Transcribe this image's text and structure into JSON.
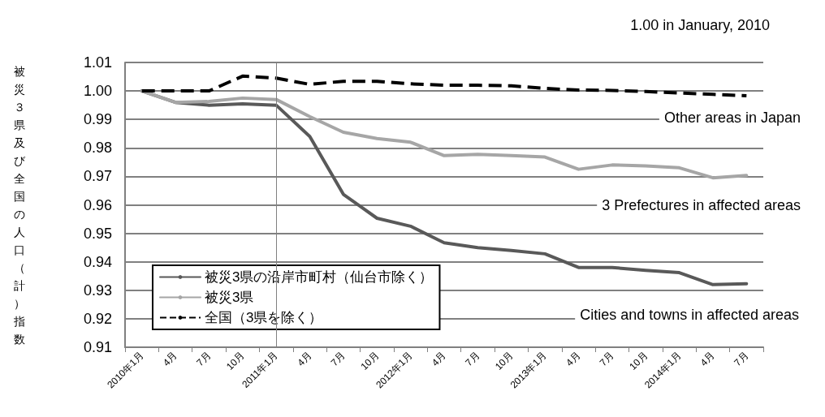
{
  "chart_data": {
    "type": "line",
    "ylabel": "被災３県及び全国の人口（計）指数",
    "categories": [
      "2010年1月",
      "4月",
      "7月",
      "10月",
      "2011年1月",
      "4月",
      "7月",
      "10月",
      "2012年1月",
      "4月",
      "7月",
      "10月",
      "2013年1月",
      "4月",
      "7月",
      "10月",
      "2014年1月",
      "4月",
      "7月"
    ],
    "series": [
      {
        "name": "被災3県の沿岸市町村（仙台市除く）",
        "color": "#595959",
        "line_style": "solid",
        "values": [
          1.0,
          0.996,
          0.995,
          0.9955,
          0.995,
          0.984,
          0.9637,
          0.9553,
          0.9525,
          0.9467,
          0.945,
          0.944,
          0.9428,
          0.938,
          0.938,
          0.937,
          0.9362,
          0.932,
          0.9323
        ]
      },
      {
        "name": "被災3県",
        "color": "#a6a6a6",
        "line_style": "solid",
        "values": [
          1.0,
          0.996,
          0.9963,
          0.9975,
          0.997,
          0.991,
          0.9855,
          0.9833,
          0.982,
          0.9773,
          0.9777,
          0.9773,
          0.9768,
          0.9725,
          0.974,
          0.9737,
          0.973,
          0.9695,
          0.9703
        ]
      },
      {
        "name": "全国（3県を除く）",
        "color": "#000000",
        "line_style": "dashed",
        "values": [
          1.0,
          1.0,
          1.0,
          1.0052,
          1.0045,
          1.0023,
          1.0034,
          1.0034,
          1.0025,
          1.002,
          1.002,
          1.0018,
          1.0009,
          1.0003,
          1.0002,
          0.9998,
          0.9993,
          0.9988,
          0.9983
        ]
      }
    ],
    "ylim": [
      0.91,
      1.01
    ],
    "yticks": [
      0.91,
      0.92,
      0.93,
      0.94,
      0.95,
      0.96,
      0.97,
      0.98,
      0.99,
      {
        "value": 1.0,
        "label": "1.00"
      },
      1.01
    ],
    "ref_lines": [
      {
        "axis": "x",
        "value": "2011年1月",
        "color": "#808080"
      }
    ],
    "annotations": [
      "1.00 in January, 2010",
      "Other areas in Japan",
      "3 Prefectures in affected areas",
      "Cities and towns in affected areas"
    ],
    "grid": "y",
    "legend": "bottom left",
    "marker": "none"
  }
}
